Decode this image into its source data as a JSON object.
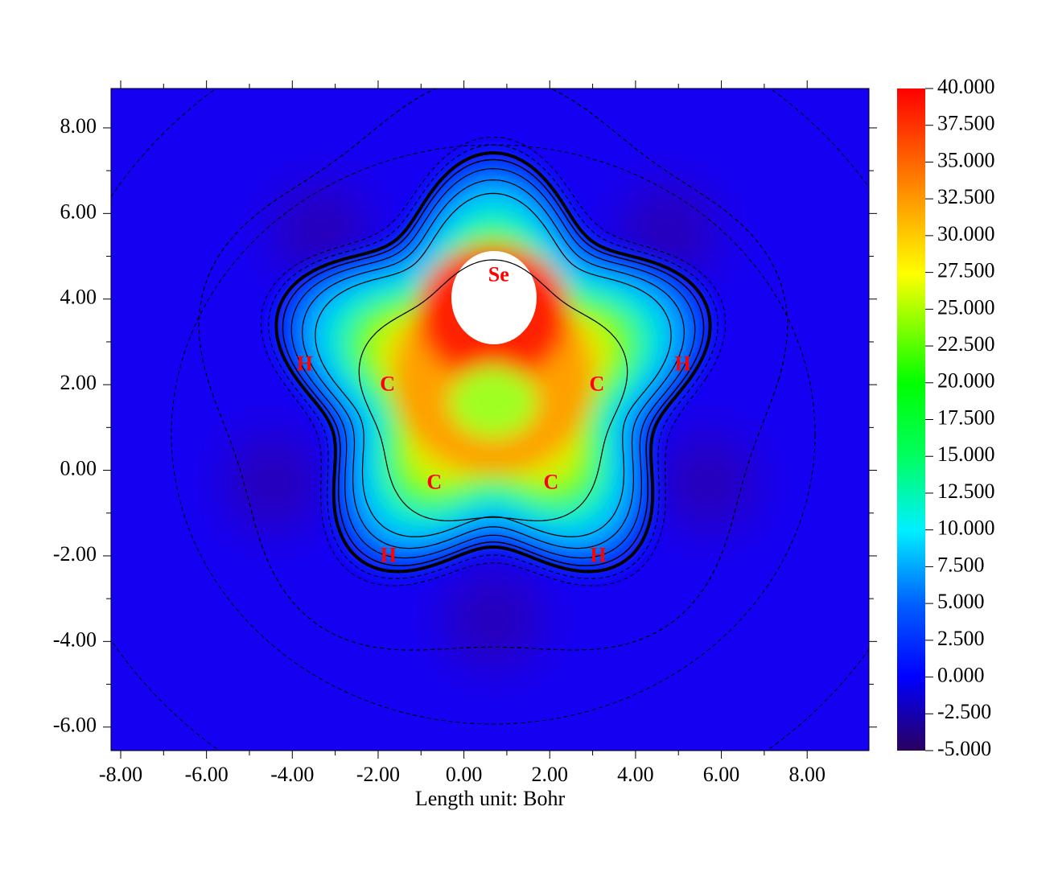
{
  "chart_data": {
    "type": "heatmap",
    "xlabel": "Length unit: Bohr",
    "xlim": [
      -8.225,
      9.44
    ],
    "ylim": [
      -6.55,
      8.92
    ],
    "xticks": [
      {
        "value": -8,
        "label": "-8.00"
      },
      {
        "value": -6,
        "label": "-6.00"
      },
      {
        "value": -4,
        "label": "-4.00"
      },
      {
        "value": -2,
        "label": "-2.00"
      },
      {
        "value": 0,
        "label": "0.00"
      },
      {
        "value": 2,
        "label": "2.00"
      },
      {
        "value": 4,
        "label": "4.00"
      },
      {
        "value": 6,
        "label": "6.00"
      },
      {
        "value": 8,
        "label": "8.00"
      }
    ],
    "yticks": [
      {
        "value": -6,
        "label": "-6.00"
      },
      {
        "value": -4,
        "label": "-4.00"
      },
      {
        "value": -2,
        "label": "-2.00"
      },
      {
        "value": 0,
        "label": "0.00"
      },
      {
        "value": 2,
        "label": "2.00"
      },
      {
        "value": 4,
        "label": "4.00"
      },
      {
        "value": 6,
        "label": "6.00"
      },
      {
        "value": 8,
        "label": "8.00"
      }
    ],
    "colorbar": {
      "lim": [
        -5,
        40
      ],
      "ticks": [
        {
          "value": 40,
          "label": "40.000"
        },
        {
          "value": 37.5,
          "label": "37.500"
        },
        {
          "value": 35,
          "label": "35.000"
        },
        {
          "value": 32.5,
          "label": "32.500"
        },
        {
          "value": 30,
          "label": "30.000"
        },
        {
          "value": 27.5,
          "label": "27.500"
        },
        {
          "value": 25,
          "label": "25.000"
        },
        {
          "value": 22.5,
          "label": "22.500"
        },
        {
          "value": 20,
          "label": "20.000"
        },
        {
          "value": 17.5,
          "label": "17.500"
        },
        {
          "value": 15,
          "label": "15.000"
        },
        {
          "value": 12.5,
          "label": "12.500"
        },
        {
          "value": 10,
          "label": "10.000"
        },
        {
          "value": 7.5,
          "label": "7.500"
        },
        {
          "value": 5,
          "label": "5.000"
        },
        {
          "value": 2.5,
          "label": "2.500"
        },
        {
          "value": 0,
          "label": "0.000"
        },
        {
          "value": -2.5,
          "label": "-2.500"
        },
        {
          "value": -5,
          "label": "-5.000"
        }
      ]
    },
    "annotation_color": "#ff0000",
    "annotations": [
      {
        "text": "Se",
        "x": 0.81,
        "y": 4.53
      },
      {
        "text": "C",
        "x": -1.78,
        "y": 1.97
      },
      {
        "text": "C",
        "x": 3.1,
        "y": 1.97
      },
      {
        "text": "C",
        "x": -0.69,
        "y": -0.32
      },
      {
        "text": "C",
        "x": 2.03,
        "y": -0.32
      },
      {
        "text": "H",
        "x": -3.71,
        "y": 2.44
      },
      {
        "text": "H",
        "x": 5.1,
        "y": 2.44
      },
      {
        "text": "H",
        "x": -1.76,
        "y": -2.03
      },
      {
        "text": "H",
        "x": 3.13,
        "y": -2.03
      }
    ]
  }
}
